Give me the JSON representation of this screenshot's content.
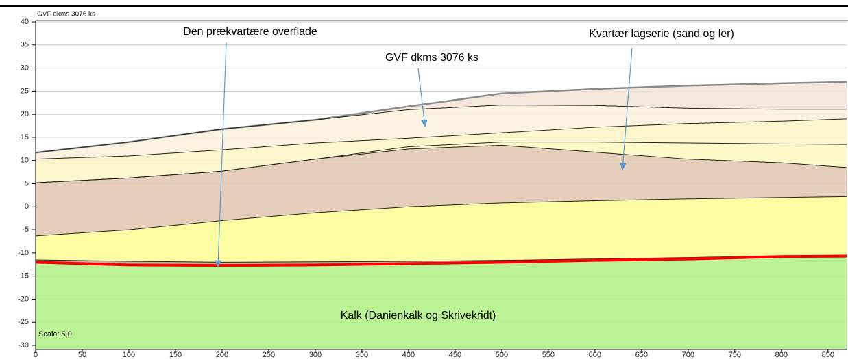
{
  "chart_data": {
    "type": "area",
    "title": "GVF dkms 3076 ks",
    "scale_label": "Scale: 5,0",
    "annotations": [
      "Den prækvartære overflade",
      "GVF dkms 3076 ks",
      "Kvartær lagserie (sand og ler)",
      "Kalk (Danienkalk og Skrivekridt)"
    ],
    "x": [
      0,
      100,
      200,
      300,
      400,
      500,
      600,
      700,
      800,
      870
    ],
    "layers": [
      {
        "color": "#f3e5d8",
        "line_color": "#8a8a8a",
        "line_width": 2.5,
        "values": [
          11.7,
          14,
          16.8,
          18.8,
          21.7,
          24.5,
          25.5,
          26.2,
          26.7,
          27
        ]
      },
      {
        "color": "#fbf2dc",
        "line_color": "#222222",
        "line_width": 1,
        "values": [
          11.7,
          14,
          16.8,
          18.8,
          21,
          22,
          21.9,
          21.3,
          21.1,
          21.1
        ]
      },
      {
        "color": "#fbf5c8",
        "line_color": "#222222",
        "line_width": 1,
        "values": [
          10.3,
          11,
          12.3,
          13.8,
          14.8,
          16,
          17.2,
          18,
          18.5,
          19
        ]
      },
      {
        "color": "#fdfac2",
        "line_color": "#222222",
        "line_width": 1,
        "values": [
          5.2,
          6.2,
          7.7,
          10.3,
          13,
          14,
          14,
          13.8,
          13.6,
          13.5
        ]
      },
      {
        "color": "#e3cbb5",
        "line_color": "#222222",
        "line_width": 1,
        "values": [
          5.2,
          6.2,
          7.7,
          10.3,
          12.5,
          13.3,
          11.8,
          10.3,
          9.5,
          8.5
        ]
      },
      {
        "color": "#fcfc9a",
        "line_color": "#222222",
        "line_width": 1,
        "values": [
          -6.3,
          -5,
          -3,
          -1.3,
          0,
          0.8,
          1.3,
          1.7,
          2,
          2.2
        ]
      },
      {
        "color": "#c9a58f",
        "line_color": "#222222",
        "line_width": 1,
        "values": [
          -11.5,
          -11.8,
          -12,
          -11.9,
          -11.8,
          -11.6,
          -11.3,
          -11,
          -10.6,
          -10.5
        ]
      },
      {
        "color": "#b5f18c",
        "line_color": "#ff0000",
        "line_width": 4,
        "values": [
          -12,
          -12.6,
          -12.7,
          -12.6,
          -12.3,
          -12,
          -11.6,
          -11.3,
          -10.8,
          -10.7
        ]
      }
    ],
    "xlim": [
      0,
      870
    ],
    "ylim": [
      -30,
      40
    ],
    "xticks": [
      0,
      50,
      100,
      150,
      200,
      250,
      300,
      350,
      400,
      450,
      500,
      550,
      600,
      650,
      700,
      750,
      800,
      850
    ],
    "yticks": [
      -30,
      -25,
      -20,
      -15,
      -10,
      -5,
      0,
      5,
      10,
      15,
      20,
      25,
      30,
      35,
      40
    ],
    "grid": true
  }
}
